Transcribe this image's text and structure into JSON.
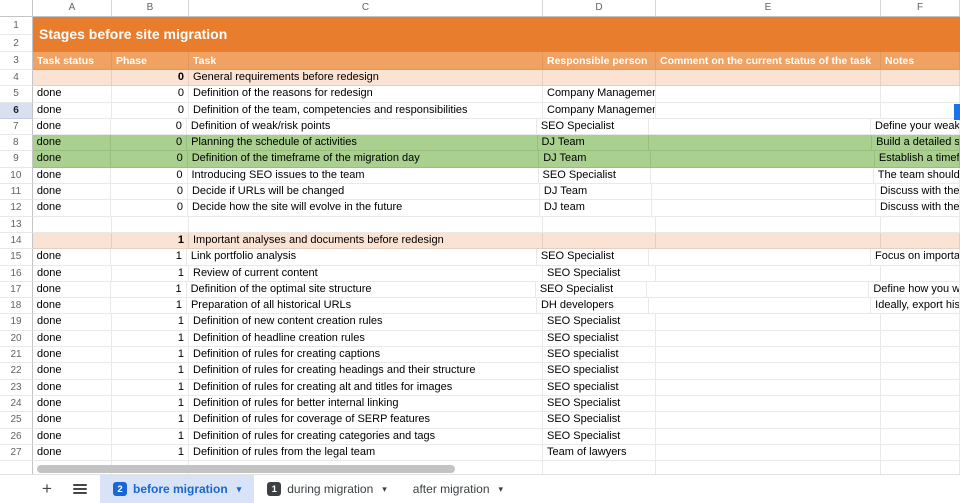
{
  "sheet": {
    "column_letters": [
      "A",
      "B",
      "C",
      "D",
      "E",
      "F"
    ],
    "fixed_row_numbers": [
      "1",
      "2",
      "3"
    ],
    "title": "Stages before site migration",
    "headers": {
      "status": "Task status",
      "phase": "Phase",
      "task": "Task",
      "person": "Responsible person",
      "comment": "Comment on the current status of the task",
      "notes": "Notes"
    },
    "rows": [
      {
        "n": "4",
        "status": "",
        "phase": "0",
        "task": "General requirements before redesign",
        "person": "",
        "comment": "",
        "notes": "",
        "style": "section"
      },
      {
        "n": "5",
        "status": "done",
        "phase": "0",
        "task": "Definition of the reasons for redesign",
        "person": "Company Management",
        "comment": "",
        "notes": ""
      },
      {
        "n": "6",
        "status": "done",
        "phase": "0",
        "task": "Definition of the team, competencies and responsibilities",
        "person": "Company Management",
        "comment": "",
        "notes": "",
        "selected": true
      },
      {
        "n": "7",
        "status": "done",
        "phase": "0",
        "task": "Definition of weak/risk points",
        "person": "SEO Specialist",
        "comment": "",
        "notes": "Define your weak"
      },
      {
        "n": "8",
        "status": "done",
        "phase": "0",
        "task": "Planning the schedule of activities",
        "person": "DJ Team",
        "comment": "",
        "notes": "Build a detailed s",
        "style": "green"
      },
      {
        "n": "9",
        "status": "done",
        "phase": "0",
        "task": "Definition of the timeframe of the migration day",
        "person": "DJ Team",
        "comment": "",
        "notes": "Establish a timef",
        "style": "green"
      },
      {
        "n": "10",
        "status": "done",
        "phase": "0",
        "task": "Introducing SEO issues to the team",
        "person": "SEO Specialist",
        "comment": "",
        "notes": "The team should"
      },
      {
        "n": "11",
        "status": "done",
        "phase": "0",
        "task": "Decide if URLs will be changed",
        "person": "DJ Team",
        "comment": "",
        "notes": "Discuss with the"
      },
      {
        "n": "12",
        "status": "done",
        "phase": "0",
        "task": "Decide how the site will evolve in the future",
        "person": "DJ team",
        "comment": "",
        "notes": "Discuss with the"
      },
      {
        "n": "13",
        "status": "",
        "phase": "",
        "task": "",
        "person": "",
        "comment": "",
        "notes": ""
      },
      {
        "n": "14",
        "status": "",
        "phase": "1",
        "task": "Important analyses and documents before redesign",
        "person": "",
        "comment": "",
        "notes": "",
        "style": "section"
      },
      {
        "n": "15",
        "status": "done",
        "phase": "1",
        "task": "Link portfolio analysis",
        "person": "SEO Specialist",
        "comment": "",
        "notes": "Focus on importa"
      },
      {
        "n": "16",
        "status": "done",
        "phase": "1",
        "task": "Review of current content",
        "person": "SEO Specialist",
        "comment": "",
        "notes": ""
      },
      {
        "n": "17",
        "status": "done",
        "phase": "1",
        "task": "Definition of the optimal site structure",
        "person": "SEO Specialist",
        "comment": "",
        "notes": "Define how you w"
      },
      {
        "n": "18",
        "status": "done",
        "phase": "1",
        "task": "Preparation of all historical URLs",
        "person": "DH developers",
        "comment": "",
        "notes": "Ideally, export his"
      },
      {
        "n": "19",
        "status": "done",
        "phase": "1",
        "task": "Definition of new content creation rules",
        "person": "SEO Specialist",
        "comment": "",
        "notes": ""
      },
      {
        "n": "20",
        "status": "done",
        "phase": "1",
        "task": "Definition of headline creation rules",
        "person": "SEO specialist",
        "comment": "",
        "notes": ""
      },
      {
        "n": "21",
        "status": "done",
        "phase": "1",
        "task": "Definition of rules for creating captions",
        "person": "SEO specialist",
        "comment": "",
        "notes": ""
      },
      {
        "n": "22",
        "status": "done",
        "phase": "1",
        "task": "Definition of rules for creating headings and their structure",
        "person": "SEO specialist",
        "comment": "",
        "notes": ""
      },
      {
        "n": "23",
        "status": "done",
        "phase": "1",
        "task": "Definition of rules for creating alt and titles for images",
        "person": "SEO specialist",
        "comment": "",
        "notes": ""
      },
      {
        "n": "24",
        "status": "done",
        "phase": "1",
        "task": "Definition of rules for better internal linking",
        "person": "SEO Specialist",
        "comment": "",
        "notes": ""
      },
      {
        "n": "25",
        "status": "done",
        "phase": "1",
        "task": "Definition of rules for coverage of SERP features",
        "person": "SEO Specialist",
        "comment": "",
        "notes": ""
      },
      {
        "n": "26",
        "status": "done",
        "phase": "1",
        "task": "Definition of rules for creating categories and tags",
        "person": "SEO Specialist",
        "comment": "",
        "notes": ""
      },
      {
        "n": "27",
        "status": "done",
        "phase": "1",
        "task": "Definition of rules from the legal team",
        "person": "Team of lawyers",
        "comment": "",
        "notes": ""
      },
      {
        "n": "",
        "status": "",
        "phase": "",
        "task": "",
        "person": "",
        "comment": "",
        "notes": "",
        "style": "partial"
      }
    ]
  },
  "tabbar": {
    "tabs": [
      {
        "label": "before migration",
        "badge": "2",
        "active": true
      },
      {
        "label": "during migration",
        "badge": "1",
        "active": false
      },
      {
        "label": "after migration",
        "badge": "",
        "active": false
      }
    ]
  },
  "colors": {
    "title_orange": "#e87d2d",
    "header_orange": "#f0a263",
    "section_peach": "#fbe3d4",
    "highlight_green": "#a9d08e",
    "active_tab_blue": "#1967d2",
    "active_tab_bg": "#d9e3f7",
    "badge_dark": "#3c4043",
    "selection_blue": "#1a73e8"
  }
}
